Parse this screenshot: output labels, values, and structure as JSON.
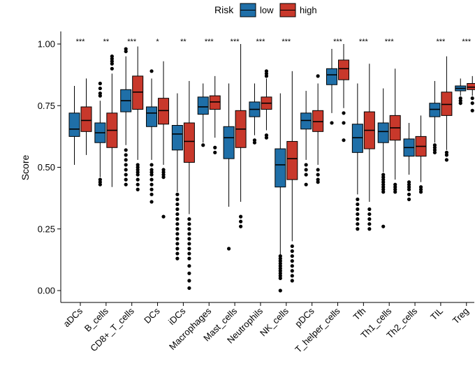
{
  "chart_data": {
    "type": "boxplot",
    "title": "",
    "xlabel": "",
    "ylabel": "Score",
    "ylim": [
      -0.05,
      1.05
    ],
    "yticks": [
      "0.00",
      "0.25",
      "0.50",
      "0.75",
      "1.00"
    ],
    "legend": {
      "title": "Risk",
      "position": "top"
    },
    "series": [
      {
        "name": "low",
        "color": "#1f6fa8"
      },
      {
        "name": "high",
        "color": "#c8382b"
      }
    ],
    "categories": [
      "aDCs",
      "B_cells",
      "CD8+_T_cells",
      "DCs",
      "iDCs",
      "Macrophages",
      "Mast_cells",
      "Neutrophils",
      "NK_cells",
      "pDCs",
      "T_helper_cells",
      "Tfh",
      "Th1_cells",
      "Th2_cells",
      "TIL",
      "Treg"
    ],
    "significance": [
      "***",
      "**",
      "***",
      "*",
      "**",
      "***",
      "***",
      "***",
      "***",
      "",
      "***",
      "***",
      "***",
      "",
      "***",
      "***"
    ],
    "boxes": [
      {
        "low": {
          "lo": 0.51,
          "q1": 0.625,
          "med": 0.655,
          "q3": 0.72,
          "hi": 0.83,
          "outliers": []
        },
        "high": {
          "lo": 0.55,
          "q1": 0.645,
          "med": 0.69,
          "q3": 0.745,
          "hi": 0.86,
          "outliers": []
        }
      },
      {
        "low": {
          "lo": 0.46,
          "q1": 0.6,
          "med": 0.64,
          "q3": 0.68,
          "hi": 0.77,
          "outliers": [
            0.44,
            0.43,
            0.45,
            0.79,
            0.8,
            0.82,
            0.84
          ]
        },
        "high": {
          "lo": 0.42,
          "q1": 0.58,
          "med": 0.65,
          "q3": 0.72,
          "hi": 0.88,
          "outliers": [
            0.9,
            0.92,
            0.93,
            0.94,
            0.95
          ]
        }
      },
      {
        "low": {
          "lo": 0.59,
          "q1": 0.725,
          "med": 0.77,
          "q3": 0.815,
          "hi": 0.95,
          "outliers": [
            0.97,
            0.98,
            0.57,
            0.55,
            0.53,
            0.51,
            0.49,
            0.47,
            0.45,
            0.43
          ]
        },
        "high": {
          "lo": 0.53,
          "q1": 0.735,
          "med": 0.805,
          "q3": 0.87,
          "hi": 0.99,
          "outliers": [
            0.51,
            0.5,
            0.49,
            0.48,
            0.47,
            0.45,
            0.43,
            0.41
          ]
        }
      },
      {
        "low": {
          "lo": 0.53,
          "q1": 0.665,
          "med": 0.72,
          "q3": 0.745,
          "hi": 0.86,
          "outliers": [
            0.89,
            0.51,
            0.49,
            0.48,
            0.47,
            0.45,
            0.43,
            0.41,
            0.39,
            0.36
          ]
        },
        "high": {
          "lo": 0.51,
          "q1": 0.675,
          "med": 0.73,
          "q3": 0.78,
          "hi": 0.93,
          "outliers": [
            0.49,
            0.48,
            0.47,
            0.46,
            0.3
          ]
        }
      },
      {
        "low": {
          "lo": 0.4,
          "q1": 0.57,
          "med": 0.635,
          "q3": 0.67,
          "hi": 0.8,
          "outliers": [
            0.39,
            0.37,
            0.35,
            0.33,
            0.31,
            0.29,
            0.27,
            0.25,
            0.23,
            0.21,
            0.19,
            0.17,
            0.15,
            0.13
          ]
        },
        "high": {
          "lo": 0.31,
          "q1": 0.52,
          "med": 0.605,
          "q3": 0.68,
          "hi": 0.85,
          "outliers": [
            0.29,
            0.27,
            0.25,
            0.23,
            0.21,
            0.19,
            0.17,
            0.15,
            0.13,
            0.1,
            0.07,
            0.04,
            0.01
          ]
        }
      },
      {
        "low": {
          "lo": 0.6,
          "q1": 0.715,
          "med": 0.745,
          "q3": 0.785,
          "hi": 0.84,
          "outliers": [
            0.59
          ]
        },
        "high": {
          "lo": 0.62,
          "q1": 0.735,
          "med": 0.765,
          "q3": 0.79,
          "hi": 0.87,
          "outliers": [
            0.58,
            0.56
          ]
        }
      },
      {
        "low": {
          "lo": 0.34,
          "q1": 0.535,
          "med": 0.62,
          "q3": 0.665,
          "hi": 0.84,
          "outliers": [
            0.17
          ]
        },
        "high": {
          "lo": 0.36,
          "q1": 0.58,
          "med": 0.655,
          "q3": 0.73,
          "hi": 1.0,
          "outliers": [
            0.3,
            0.28,
            0.26
          ]
        }
      },
      {
        "low": {
          "lo": 0.63,
          "q1": 0.705,
          "med": 0.735,
          "q3": 0.765,
          "hi": 0.84,
          "outliers": [
            0.61,
            0.6
          ]
        },
        "high": {
          "lo": 0.65,
          "q1": 0.735,
          "med": 0.76,
          "q3": 0.785,
          "hi": 0.86,
          "outliers": [
            0.63,
            0.62,
            0.87,
            0.88,
            0.89
          ]
        }
      },
      {
        "low": {
          "lo": 0.13,
          "q1": 0.42,
          "med": 0.51,
          "q3": 0.575,
          "hi": 0.8,
          "outliers": [
            0.14,
            0.13,
            0.12,
            0.11,
            0.1,
            0.09,
            0.08,
            0.07,
            0.06,
            0.05,
            0.0
          ]
        },
        "high": {
          "lo": 0.2,
          "q1": 0.45,
          "med": 0.535,
          "q3": 0.605,
          "hi": 0.89,
          "outliers": [
            0.18,
            0.16,
            0.14,
            0.12,
            0.1,
            0.08,
            0.06,
            0.04
          ]
        }
      },
      {
        "low": {
          "lo": 0.53,
          "q1": 0.655,
          "med": 0.69,
          "q3": 0.72,
          "hi": 0.81,
          "outliers": [
            0.51,
            0.49,
            0.47,
            0.43
          ]
        },
        "high": {
          "lo": 0.51,
          "q1": 0.645,
          "med": 0.685,
          "q3": 0.73,
          "hi": 0.84,
          "outliers": [
            0.87,
            0.49,
            0.47,
            0.45,
            0.44
          ]
        }
      },
      {
        "low": {
          "lo": 0.72,
          "q1": 0.835,
          "med": 0.875,
          "q3": 0.9,
          "hi": 0.98,
          "outliers": [
            0.68
          ]
        },
        "high": {
          "lo": 0.74,
          "q1": 0.855,
          "med": 0.9,
          "q3": 0.935,
          "hi": 1.0,
          "outliers": [
            0.72,
            0.68,
            0.61
          ]
        }
      },
      {
        "low": {
          "lo": 0.39,
          "q1": 0.56,
          "med": 0.62,
          "q3": 0.675,
          "hi": 0.84,
          "outliers": [
            0.37,
            0.35,
            0.33,
            0.31,
            0.29,
            0.27,
            0.25
          ]
        },
        "high": {
          "lo": 0.36,
          "q1": 0.575,
          "med": 0.65,
          "q3": 0.725,
          "hi": 0.92,
          "outliers": [
            0.33,
            0.31,
            0.29,
            0.27,
            0.25
          ]
        }
      },
      {
        "low": {
          "lo": 0.48,
          "q1": 0.6,
          "med": 0.645,
          "q3": 0.68,
          "hi": 0.82,
          "outliers": [
            0.47,
            0.46,
            0.45,
            0.44,
            0.43,
            0.42,
            0.41,
            0.4,
            0.26
          ]
        },
        "high": {
          "lo": 0.45,
          "q1": 0.61,
          "med": 0.66,
          "q3": 0.71,
          "hi": 0.9,
          "outliers": [
            0.43,
            0.42,
            0.41,
            0.4
          ]
        }
      },
      {
        "low": {
          "lo": 0.47,
          "q1": 0.545,
          "med": 0.58,
          "q3": 0.615,
          "hi": 0.68,
          "outliers": [
            0.44,
            0.43,
            0.42,
            0.41,
            0.39,
            0.37
          ]
        },
        "high": {
          "lo": 0.44,
          "q1": 0.545,
          "med": 0.585,
          "q3": 0.625,
          "hi": 0.71,
          "outliers": [
            0.42,
            0.41,
            0.4
          ]
        }
      },
      {
        "low": {
          "lo": 0.6,
          "q1": 0.705,
          "med": 0.735,
          "q3": 0.76,
          "hi": 0.85,
          "outliers": [
            0.59,
            0.58,
            0.57,
            0.56
          ]
        },
        "high": {
          "lo": 0.57,
          "q1": 0.71,
          "med": 0.755,
          "q3": 0.805,
          "hi": 0.95,
          "outliers": [
            0.56,
            0.55,
            0.53
          ]
        }
      },
      {
        "low": {
          "lo": 0.79,
          "q1": 0.81,
          "med": 0.82,
          "q3": 0.83,
          "hi": 0.86,
          "outliers": [
            0.78,
            0.77,
            0.76
          ]
        },
        "high": {
          "lo": 0.79,
          "q1": 0.815,
          "med": 0.825,
          "q3": 0.84,
          "hi": 0.87,
          "outliers": [
            0.78,
            0.76,
            0.73
          ]
        }
      }
    ]
  }
}
